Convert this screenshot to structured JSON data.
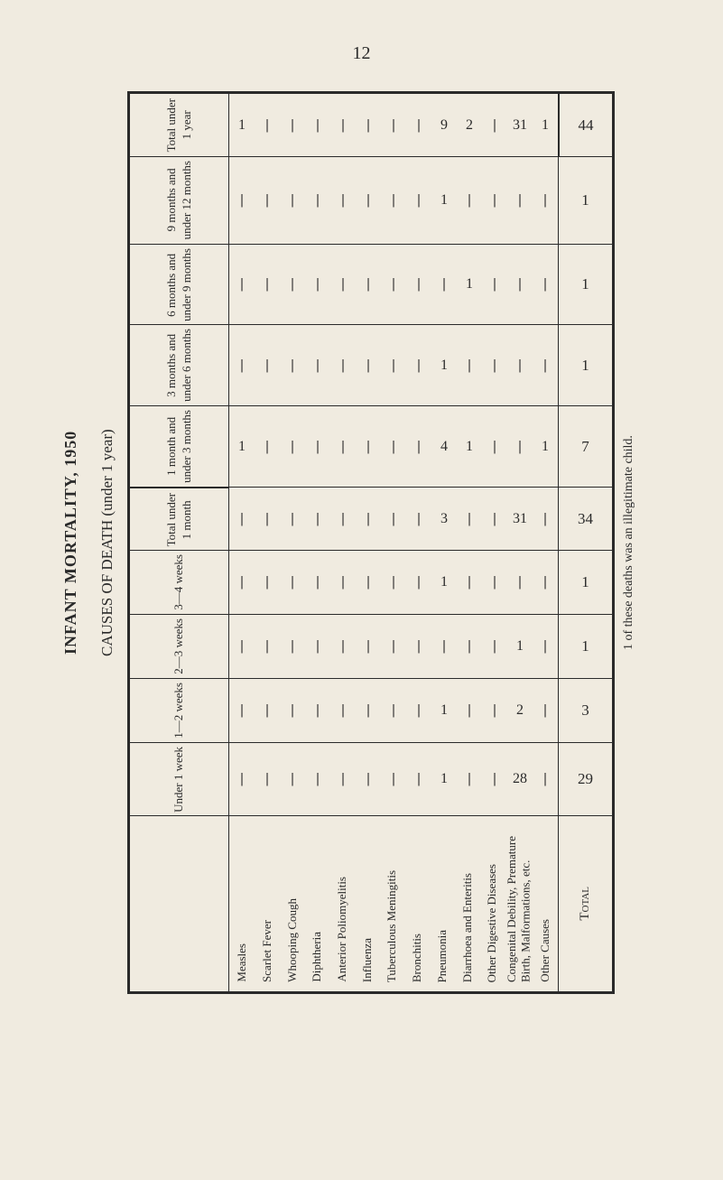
{
  "page_number": "12",
  "main_title": "INFANT MORTALITY, 1950",
  "causes_label": "CAUSES OF DEATH (under 1 year)",
  "footnote": "1 of these deaths was an illegitimate child.",
  "dash": "|",
  "col_headers": [
    "Total under\n1 year",
    "9 months and\nunder 12 months",
    "6 months and\nunder 9 months",
    "3 months and\nunder 6 months",
    "1 month and\nunder 3 months",
    "Total under\n1 month",
    "3—4 weeks",
    "2—3 weeks",
    "1—2 weeks",
    "Under 1 week"
  ],
  "total_label": "Total",
  "diseases": [
    "Measles",
    "Scarlet Fever",
    "Whooping Cough",
    "Diphtheria",
    "Anterior Poliomyelitis",
    "Influenza",
    "Tuberculous Meningitis",
    "Bronchitis",
    "Pneumonia",
    "Diarrhoea and Enteritis",
    "Other Digestive Diseases",
    "Congenital Debility, Premature\n  Birth, Malformations, etc.",
    "Other Causes"
  ],
  "rows": [
    {
      "header_idx": 0,
      "data": [
        "1",
        "|",
        "|",
        "|",
        "|",
        "|",
        "|",
        "|",
        "9",
        "2",
        "|",
        "31",
        "1"
      ],
      "total": "44"
    },
    {
      "header_idx": 1,
      "data": [
        "|",
        "|",
        "|",
        "|",
        "|",
        "|",
        "|",
        "|",
        "1",
        "|",
        "|",
        "|",
        "|"
      ],
      "total": "1"
    },
    {
      "header_idx": 2,
      "data": [
        "|",
        "|",
        "|",
        "|",
        "|",
        "|",
        "|",
        "|",
        "|",
        "1",
        "|",
        "|",
        "|"
      ],
      "total": "1"
    },
    {
      "header_idx": 3,
      "data": [
        "|",
        "|",
        "|",
        "|",
        "|",
        "|",
        "|",
        "|",
        "1",
        "|",
        "|",
        "|",
        "|"
      ],
      "total": "1"
    },
    {
      "header_idx": 4,
      "data": [
        "1",
        "|",
        "|",
        "|",
        "|",
        "|",
        "|",
        "|",
        "4",
        "1",
        "|",
        "|",
        "1"
      ],
      "total": "7"
    },
    {
      "header_idx": 5,
      "data": [
        "|",
        "|",
        "|",
        "|",
        "|",
        "|",
        "|",
        "|",
        "3",
        "|",
        "|",
        "31",
        "|"
      ],
      "total": "34"
    },
    {
      "header_idx": 6,
      "data": [
        "|",
        "|",
        "|",
        "|",
        "|",
        "|",
        "|",
        "|",
        "1",
        "|",
        "|",
        "|",
        "|"
      ],
      "total": "1"
    },
    {
      "header_idx": 7,
      "data": [
        "|",
        "|",
        "|",
        "|",
        "|",
        "|",
        "|",
        "|",
        "|",
        "|",
        "|",
        "1",
        "|"
      ],
      "total": "1"
    },
    {
      "header_idx": 8,
      "data": [
        "|",
        "|",
        "|",
        "|",
        "|",
        "|",
        "|",
        "|",
        "1",
        "|",
        "|",
        "2",
        "|"
      ],
      "total": "3"
    },
    {
      "header_idx": 9,
      "data": [
        "|",
        "|",
        "|",
        "|",
        "|",
        "|",
        "|",
        "|",
        "1",
        "|",
        "|",
        "28",
        "|"
      ],
      "total": "29"
    }
  ]
}
